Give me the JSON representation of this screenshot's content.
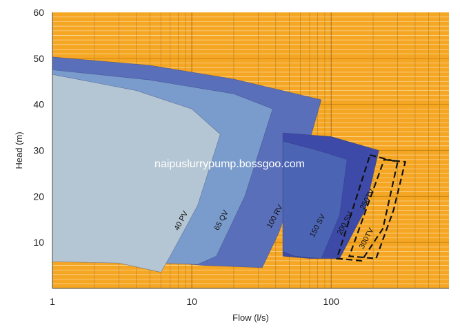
{
  "chart_data": {
    "type": "area",
    "title": "",
    "xlabel": "Flow (l/s)",
    "ylabel": "Head (m)",
    "xscale": "log",
    "xlim": [
      1,
      700
    ],
    "ylim": [
      0,
      60
    ],
    "xticks": [
      1,
      10,
      100
    ],
    "xtick_labels": [
      "1",
      "10",
      "100"
    ],
    "yticks": [
      10,
      20,
      30,
      40,
      50,
      60
    ],
    "ytick_labels": [
      "10",
      "20",
      "30",
      "40",
      "50",
      "60"
    ],
    "grid": true,
    "background_color": "#f5a623",
    "series": [
      {
        "name": "100 RV",
        "color": "#5a6fba",
        "points": [
          [
            1,
            50.3
          ],
          [
            5,
            48.5
          ],
          [
            20,
            45.5
          ],
          [
            85,
            41
          ],
          [
            60,
            25
          ],
          [
            42,
            12
          ],
          [
            32,
            4.5
          ],
          [
            12,
            5
          ],
          [
            6,
            5.8
          ],
          [
            1,
            6
          ]
        ]
      },
      {
        "name": "200 SV",
        "color": "#3d4aa8",
        "points": [
          [
            45,
            33.8
          ],
          [
            100,
            33
          ],
          [
            220,
            30
          ],
          [
            175,
            17
          ],
          [
            115,
            6.5
          ],
          [
            70,
            6.5
          ],
          [
            45,
            7
          ]
        ]
      },
      {
        "name": "150 SV",
        "color": "#4c64b4",
        "points": [
          [
            45,
            32
          ],
          [
            80,
            30
          ],
          [
            130,
            28
          ],
          [
            115,
            16
          ],
          [
            85,
            6.5
          ],
          [
            55,
            7
          ],
          [
            45,
            8
          ]
        ]
      },
      {
        "name": "65 QV",
        "color": "#7a9ccc",
        "points": [
          [
            1,
            47.5
          ],
          [
            5,
            45.3
          ],
          [
            20,
            42.3
          ],
          [
            38,
            39
          ],
          [
            24,
            20
          ],
          [
            15,
            7
          ],
          [
            11,
            5.2
          ],
          [
            6,
            5.5
          ],
          [
            1,
            6
          ]
        ]
      },
      {
        "name": "40 PV",
        "color": "#b4c6d3",
        "points": [
          [
            1,
            46.5
          ],
          [
            4,
            43
          ],
          [
            10,
            39
          ],
          [
            16,
            33.5
          ],
          [
            11,
            18
          ],
          [
            7,
            7
          ],
          [
            6,
            3.5
          ],
          [
            3,
            5.5
          ],
          [
            1,
            5.8
          ]
        ]
      }
    ],
    "dashed_regions": [
      {
        "name": "250TV",
        "points": [
          [
            190,
            29
          ],
          [
            300,
            27.5
          ],
          [
            235,
            13
          ],
          [
            165,
            6
          ],
          [
            110,
            6.5
          ]
        ]
      },
      {
        "name": "300TV",
        "points": [
          [
            240,
            28
          ],
          [
            340,
            27.5
          ],
          [
            280,
            17
          ],
          [
            210,
            6.5
          ],
          [
            135,
            7
          ]
        ]
      }
    ],
    "annotations": [
      {
        "text": "40 PV",
        "x": 8,
        "y": 12.5,
        "angle": -62
      },
      {
        "text": "65 QV",
        "x": 15.5,
        "y": 12.5,
        "angle": -62
      },
      {
        "text": "100 RV",
        "x": 37,
        "y": 13,
        "angle": -62
      },
      {
        "text": "150 SV",
        "x": 75,
        "y": 11,
        "angle": -62
      },
      {
        "text": "200 SV",
        "x": 118,
        "y": 11.5,
        "angle": -62
      },
      {
        "text": "250TV",
        "x": 172,
        "y": 17,
        "angle": -62
      },
      {
        "text": "300TV",
        "x": 170,
        "y": 8.5,
        "angle": -62
      }
    ]
  },
  "watermark": "naipuslurrypump.bossgoo.com"
}
